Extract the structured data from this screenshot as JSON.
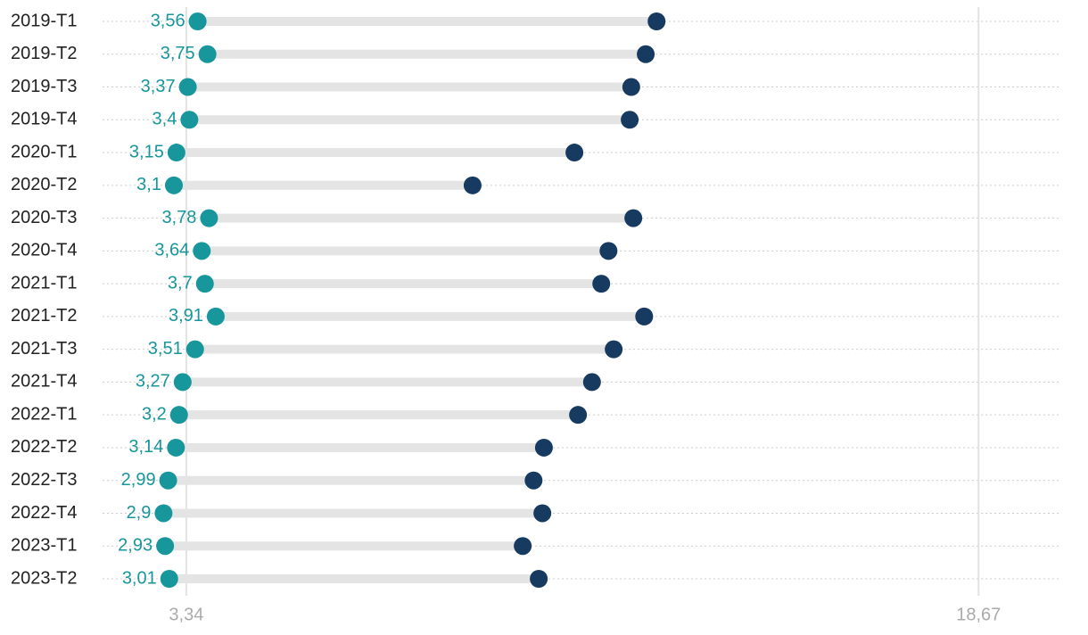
{
  "chart_data": {
    "type": "dumbbell",
    "categories": [
      "2019-T1",
      "2019-T2",
      "2019-T3",
      "2019-T4",
      "2020-T1",
      "2020-T2",
      "2020-T3",
      "2020-T4",
      "2021-T1",
      "2021-T2",
      "2021-T3",
      "2021-T4",
      "2022-T1",
      "2022-T2",
      "2022-T3",
      "2022-T4",
      "2023-T1",
      "2023-T2"
    ],
    "series": [
      {
        "color": "#17969c",
        "values": [
          3.56,
          3.75,
          3.37,
          3.4,
          3.15,
          3.1,
          3.78,
          3.64,
          3.7,
          3.91,
          3.51,
          3.27,
          3.2,
          3.14,
          2.99,
          2.9,
          2.93,
          3.01
        ],
        "value_labels": [
          "3,56",
          "3,75",
          "3,37",
          "3,4",
          "3,15",
          "3,1",
          "3,78",
          "3,64",
          "3,7",
          "3,91",
          "3,51",
          "3,27",
          "3,2",
          "3,14",
          "2,99",
          "2,9",
          "2,93",
          "3,01"
        ]
      },
      {
        "color": "#173a60",
        "values": [
          12.44,
          12.23,
          11.95,
          11.92,
          10.85,
          8.88,
          11.99,
          11.51,
          11.37,
          12.2,
          11.61,
          11.19,
          10.92,
          10.26,
          10.06,
          10.23,
          9.85,
          10.16
        ]
      }
    ],
    "xlim": [
      1.72,
      20.27
    ],
    "xticks": [
      {
        "value": 3.34,
        "label": "3,34"
      },
      {
        "value": 18.67,
        "label": "18,67"
      }
    ],
    "grid": true
  }
}
